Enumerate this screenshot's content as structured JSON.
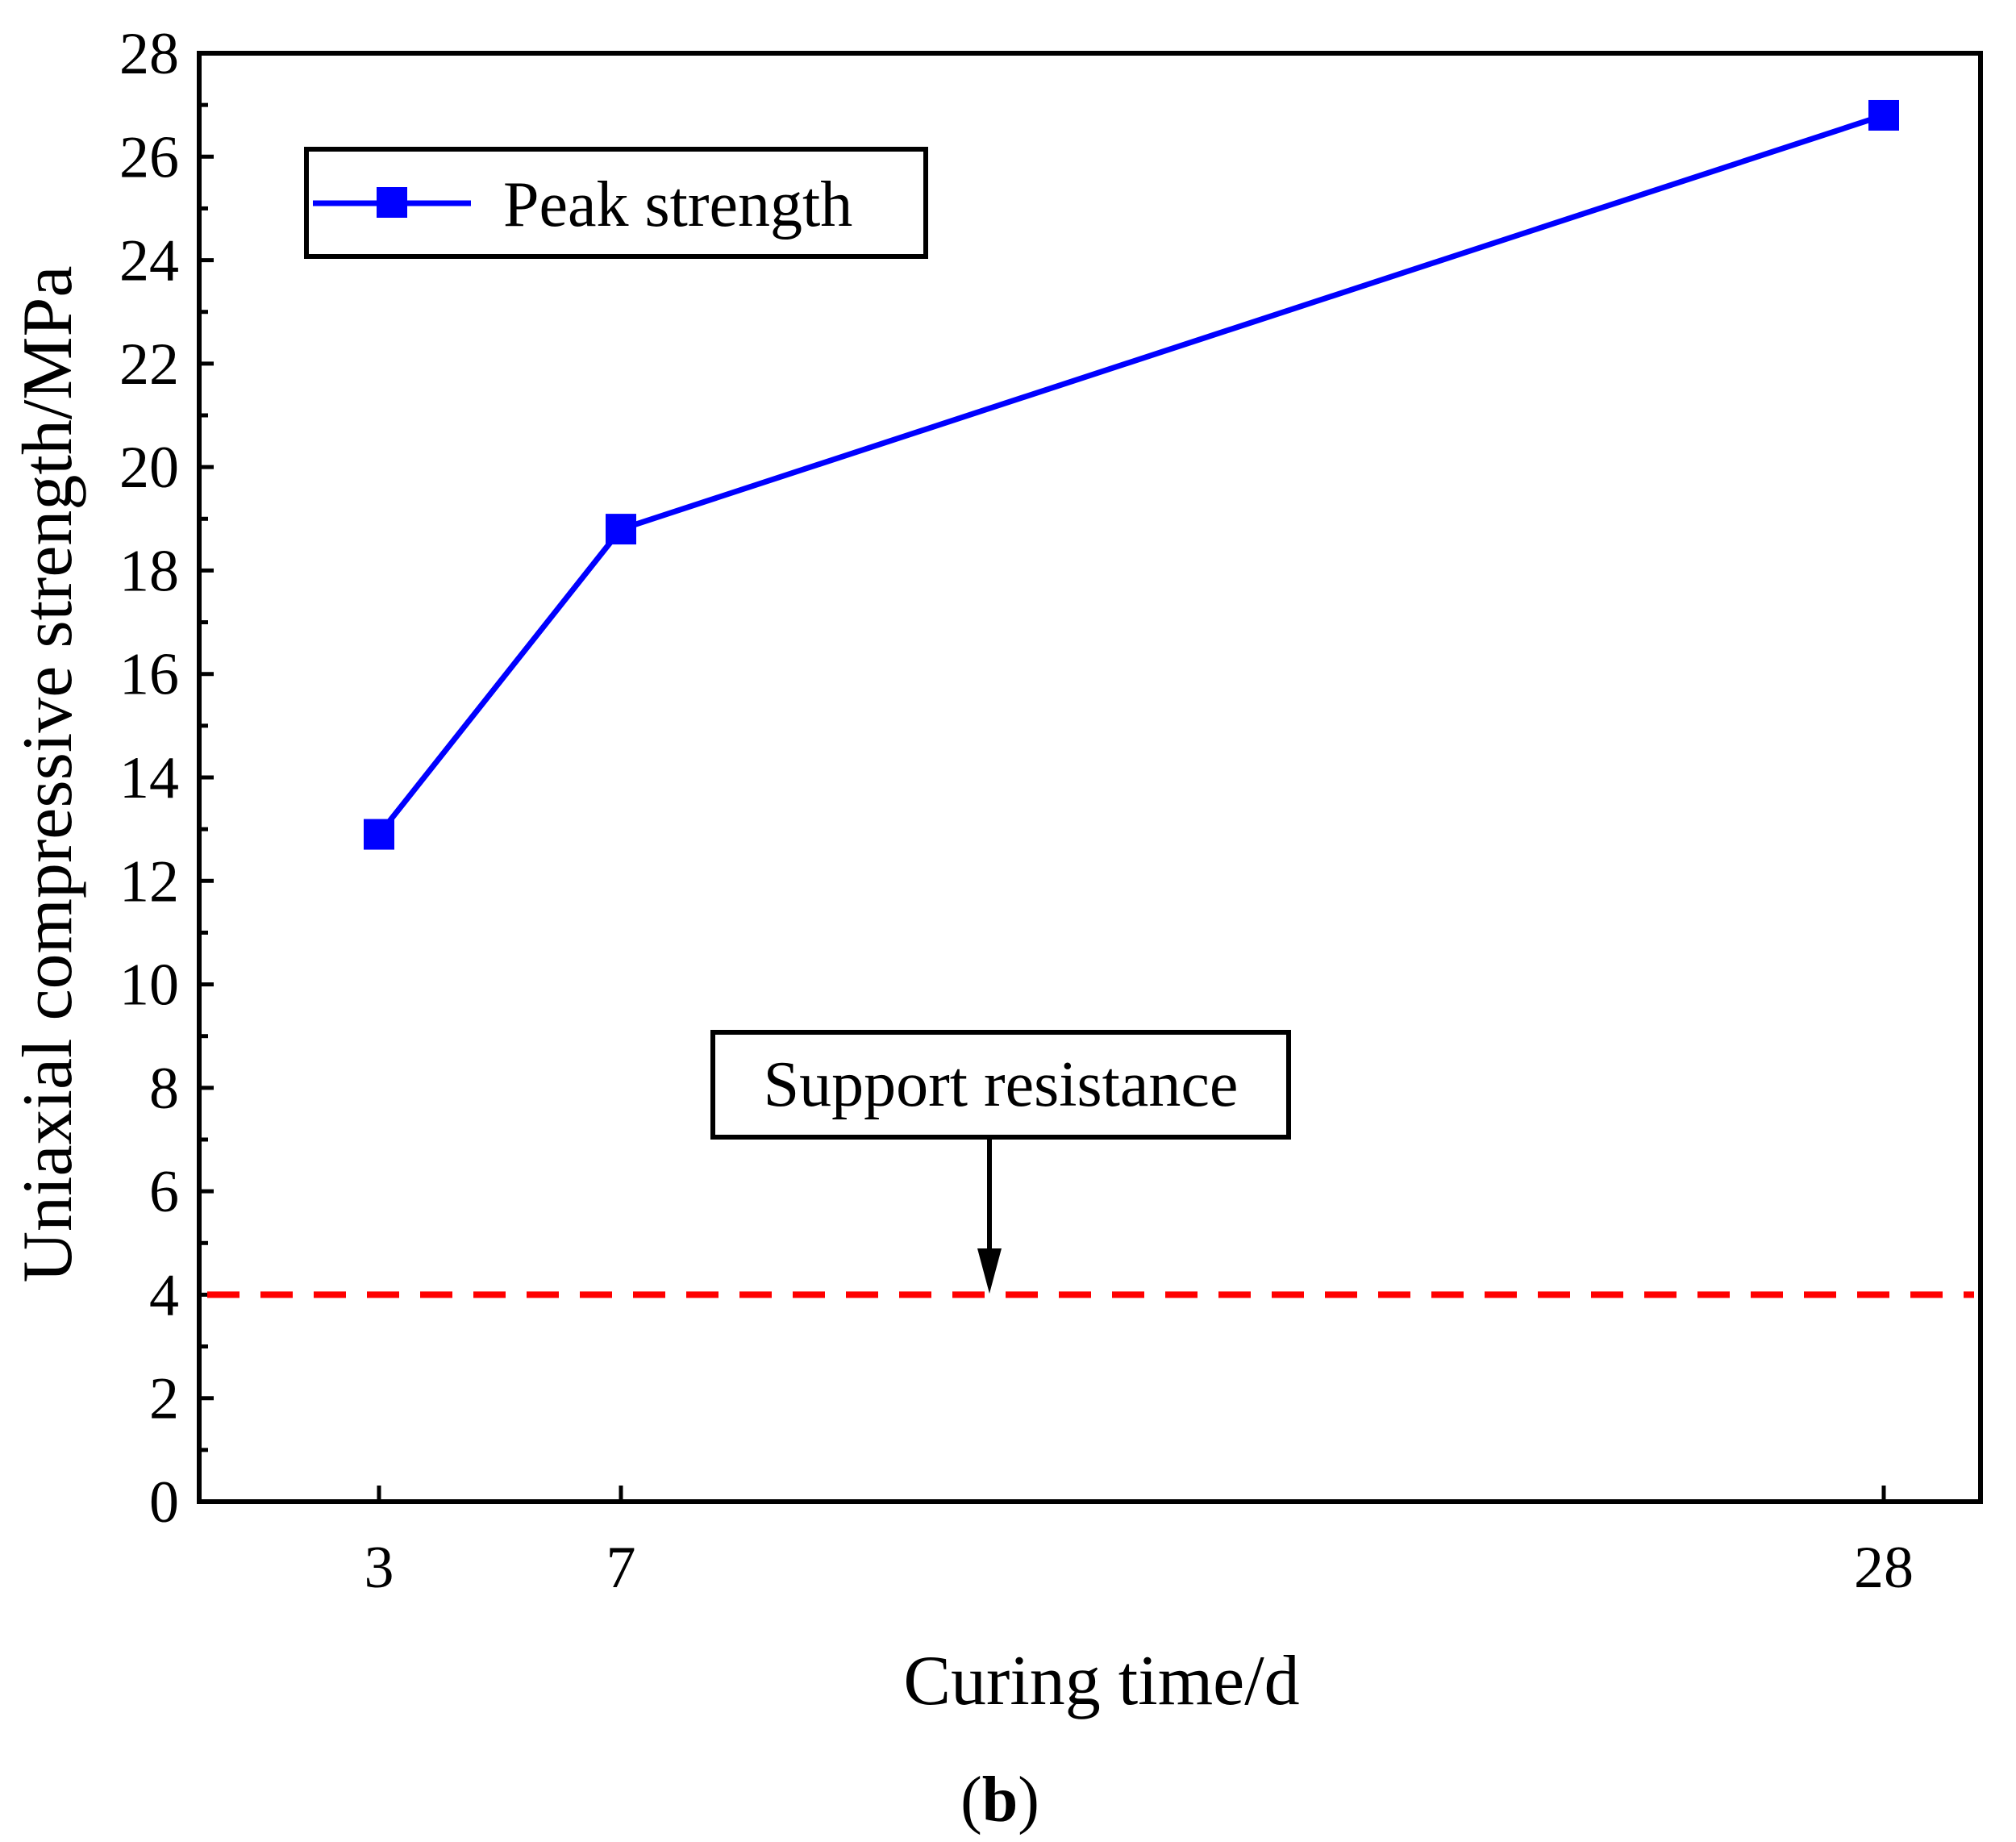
{
  "chart_data": {
    "type": "line",
    "xlabel": "Curing time/d",
    "ylabel": "Uniaxial compressive strength/MPa",
    "x_ticks": [
      "3",
      "7",
      "28"
    ],
    "y_ticks": [
      "0",
      "2",
      "4",
      "6",
      "8",
      "10",
      "12",
      "14",
      "16",
      "18",
      "20",
      "22",
      "24",
      "26",
      "28"
    ],
    "ylim": [
      0,
      28
    ],
    "series": [
      {
        "name": "Peak strength",
        "color": "#0000ff",
        "marker": "square",
        "x": [
          3,
          7,
          28
        ],
        "values": [
          12.9,
          18.8,
          26.8
        ]
      }
    ],
    "reference_line": {
      "label": "Support resistance",
      "value": 4,
      "color": "#ff0000",
      "style": "dashed"
    },
    "legend_location": "top-left",
    "panel_label": {
      "open": "(",
      "letter": "b",
      "close": ")"
    }
  }
}
